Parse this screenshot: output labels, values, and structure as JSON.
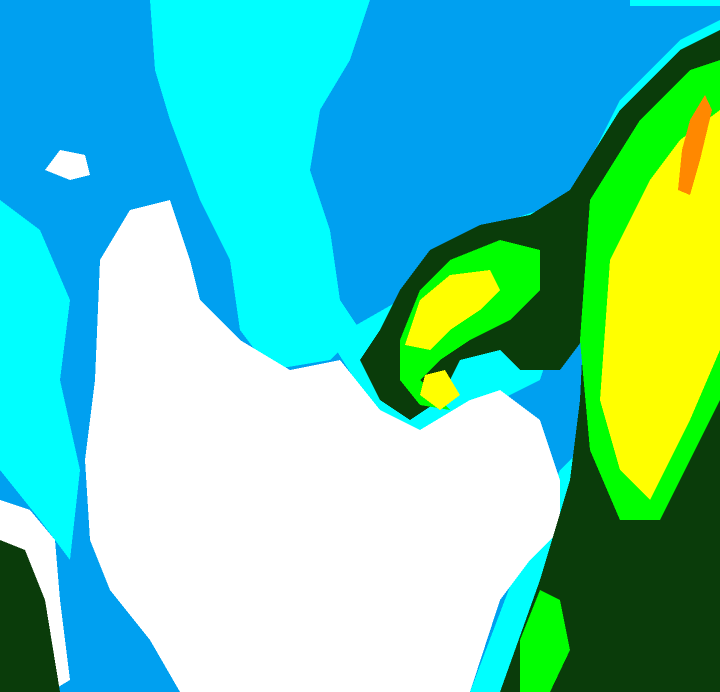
{
  "palette": {
    "background": "#00a0f0",
    "light": "#00ffff",
    "clear": "#ffffff",
    "dark_green": "#0a3c0a",
    "green": "#00ff00",
    "yellow": "#ffff00",
    "orange": "#ff8800"
  }
}
